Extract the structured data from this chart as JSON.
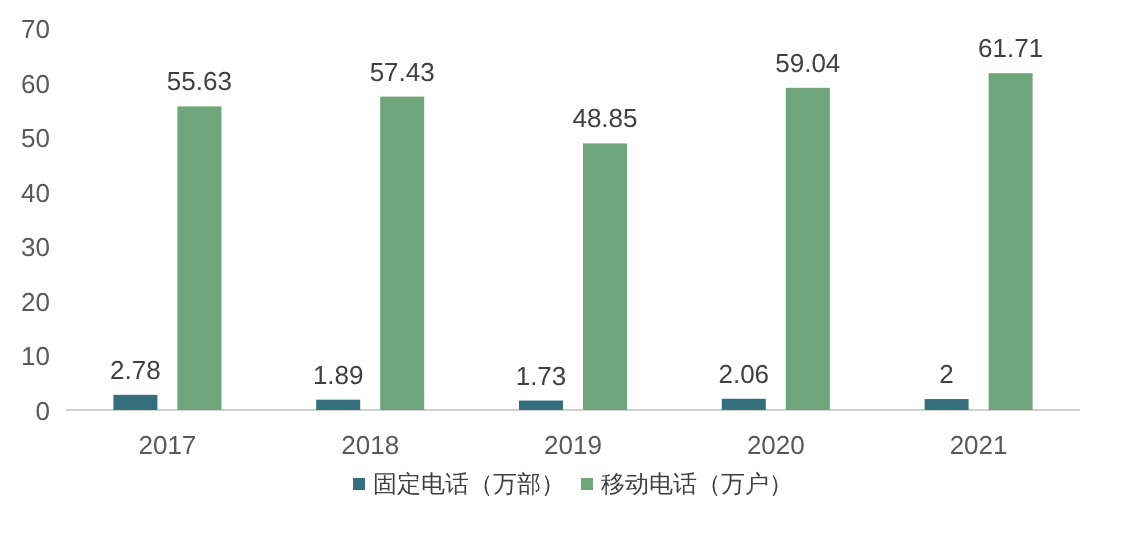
{
  "chart_data": {
    "type": "bar",
    "categories": [
      "2017",
      "2018",
      "2019",
      "2020",
      "2021"
    ],
    "series": [
      {
        "name": "固定电话（万部）",
        "color": "#356e7c",
        "values": [
          2.78,
          1.89,
          1.73,
          2.06,
          2
        ]
      },
      {
        "name": "移动电话（万户）",
        "color": "#6fa57a",
        "values": [
          55.63,
          57.43,
          48.85,
          59.04,
          61.71
        ]
      }
    ],
    "ylim": [
      0,
      70
    ],
    "yticks": [
      0,
      10,
      20,
      30,
      40,
      50,
      60,
      70
    ],
    "data_labels": true,
    "legend": "bottom",
    "grid": false
  }
}
